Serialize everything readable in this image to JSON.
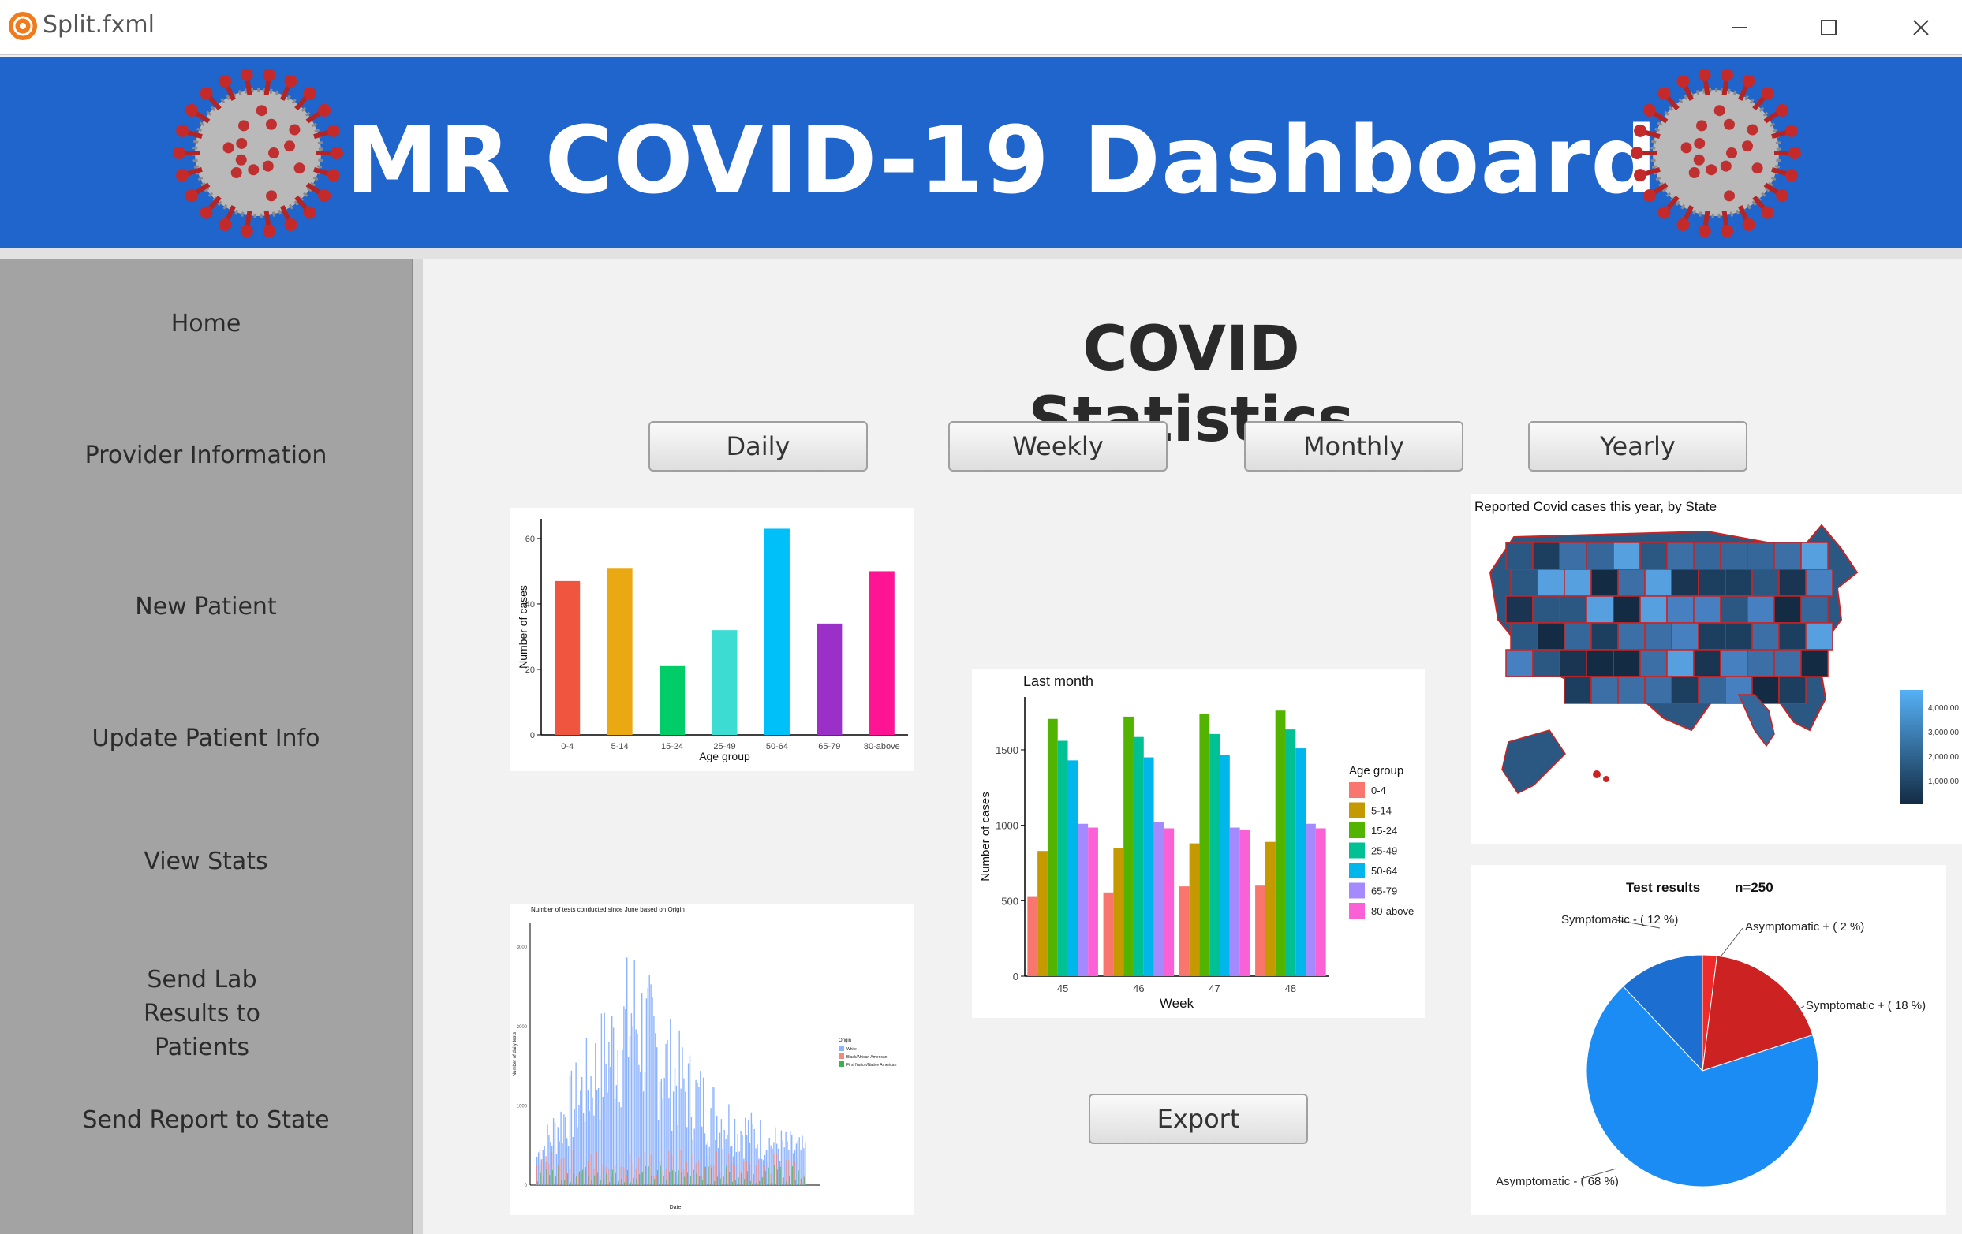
{
  "window": {
    "title": "Split.fxml"
  },
  "header": {
    "title": "MR COVID-19 Dashboard"
  },
  "sidebar": {
    "items": [
      {
        "label": "Home"
      },
      {
        "label": "Provider Information"
      },
      {
        "label": "New Patient"
      },
      {
        "label": "Update Patient Info"
      },
      {
        "label": "View Stats"
      },
      {
        "label": "Send Lab Results to Patients"
      },
      {
        "label": "Send Report to State"
      }
    ]
  },
  "main": {
    "title": "COVID Statistics",
    "period_buttons": [
      "Daily",
      "Weekly",
      "Monthly",
      "Yearly"
    ],
    "export_label": "Export"
  },
  "colors": {
    "header": "#2065cc",
    "sidebar": "#a3a3a3"
  },
  "chart_data": [
    {
      "type": "bar",
      "title": "",
      "xlabel": "Age group",
      "ylabel": "Number of cases",
      "categories": [
        "0-4",
        "5-14",
        "15-24",
        "25-49",
        "50-64",
        "65-79",
        "80-above"
      ],
      "values": [
        47,
        51,
        21,
        32,
        63,
        34,
        50
      ],
      "colors": [
        "#f0553f",
        "#eaa813",
        "#00cd68",
        "#3cdcd2",
        "#00c0fa",
        "#9b30c9",
        "#ff1493"
      ],
      "yticks": [
        0,
        20,
        40,
        60
      ],
      "ylim": [
        0,
        66
      ]
    },
    {
      "type": "bar",
      "title": "Last month",
      "xlabel": "Week",
      "ylabel": "Number of cases",
      "categories": [
        "45",
        "46",
        "47",
        "48"
      ],
      "legend_title": "Age group",
      "legend_position": "right",
      "series": [
        {
          "name": "0-4",
          "color": "#f8766d",
          "values": [
            530,
            555,
            595,
            600
          ]
        },
        {
          "name": "5-14",
          "color": "#c49a00",
          "values": [
            830,
            850,
            880,
            890
          ]
        },
        {
          "name": "15-24",
          "color": "#53b400",
          "values": [
            1705,
            1720,
            1740,
            1760
          ]
        },
        {
          "name": "25-49",
          "color": "#00c094",
          "values": [
            1560,
            1585,
            1605,
            1635
          ]
        },
        {
          "name": "50-64",
          "color": "#00b6eb",
          "values": [
            1430,
            1450,
            1465,
            1510
          ]
        },
        {
          "name": "65-79",
          "color": "#a58aff",
          "values": [
            1010,
            1020,
            985,
            1010
          ]
        },
        {
          "name": "80-above",
          "color": "#fb61d7",
          "values": [
            985,
            980,
            970,
            980
          ]
        }
      ],
      "yticks": [
        0,
        500,
        1000,
        1500
      ],
      "ylim": [
        0,
        1850
      ]
    },
    {
      "type": "pie",
      "title": "Test results",
      "subtitle": "n=250",
      "slices": [
        {
          "label": "Symptomatic -  ( 12 %)",
          "value": 12,
          "color": "#1c6fd0"
        },
        {
          "label": "Asymptomatic +  ( 2 %)",
          "value": 2,
          "color": "#ee2b2b"
        },
        {
          "label": "Symptomatic +  ( 18 %)",
          "value": 18,
          "color": "#cc2222"
        },
        {
          "label": "Asymptomatic -  ( 68 %)",
          "value": 68,
          "color": "#1c8cf5"
        }
      ]
    },
    {
      "type": "bar",
      "title": "Number of tests conducted since June based on Origin",
      "xlabel": "Date",
      "ylabel": "Number of daily tests",
      "legend_title": "Origin",
      "legend_position": "right",
      "series": [
        {
          "name": "White",
          "color": "#8fb4ff"
        },
        {
          "name": "Black/African American",
          "color": "#f08a80"
        },
        {
          "name": "First Nation/Native American",
          "color": "#3cb050"
        }
      ],
      "yticks": [
        0,
        1000,
        2000,
        3000
      ]
    },
    {
      "type": "heatmap",
      "title": "Reported Covid cases this year, by State",
      "legend_ticks": [
        "4,000,00",
        "3,000,00",
        "2,000,00",
        "1,000,00"
      ]
    }
  ]
}
